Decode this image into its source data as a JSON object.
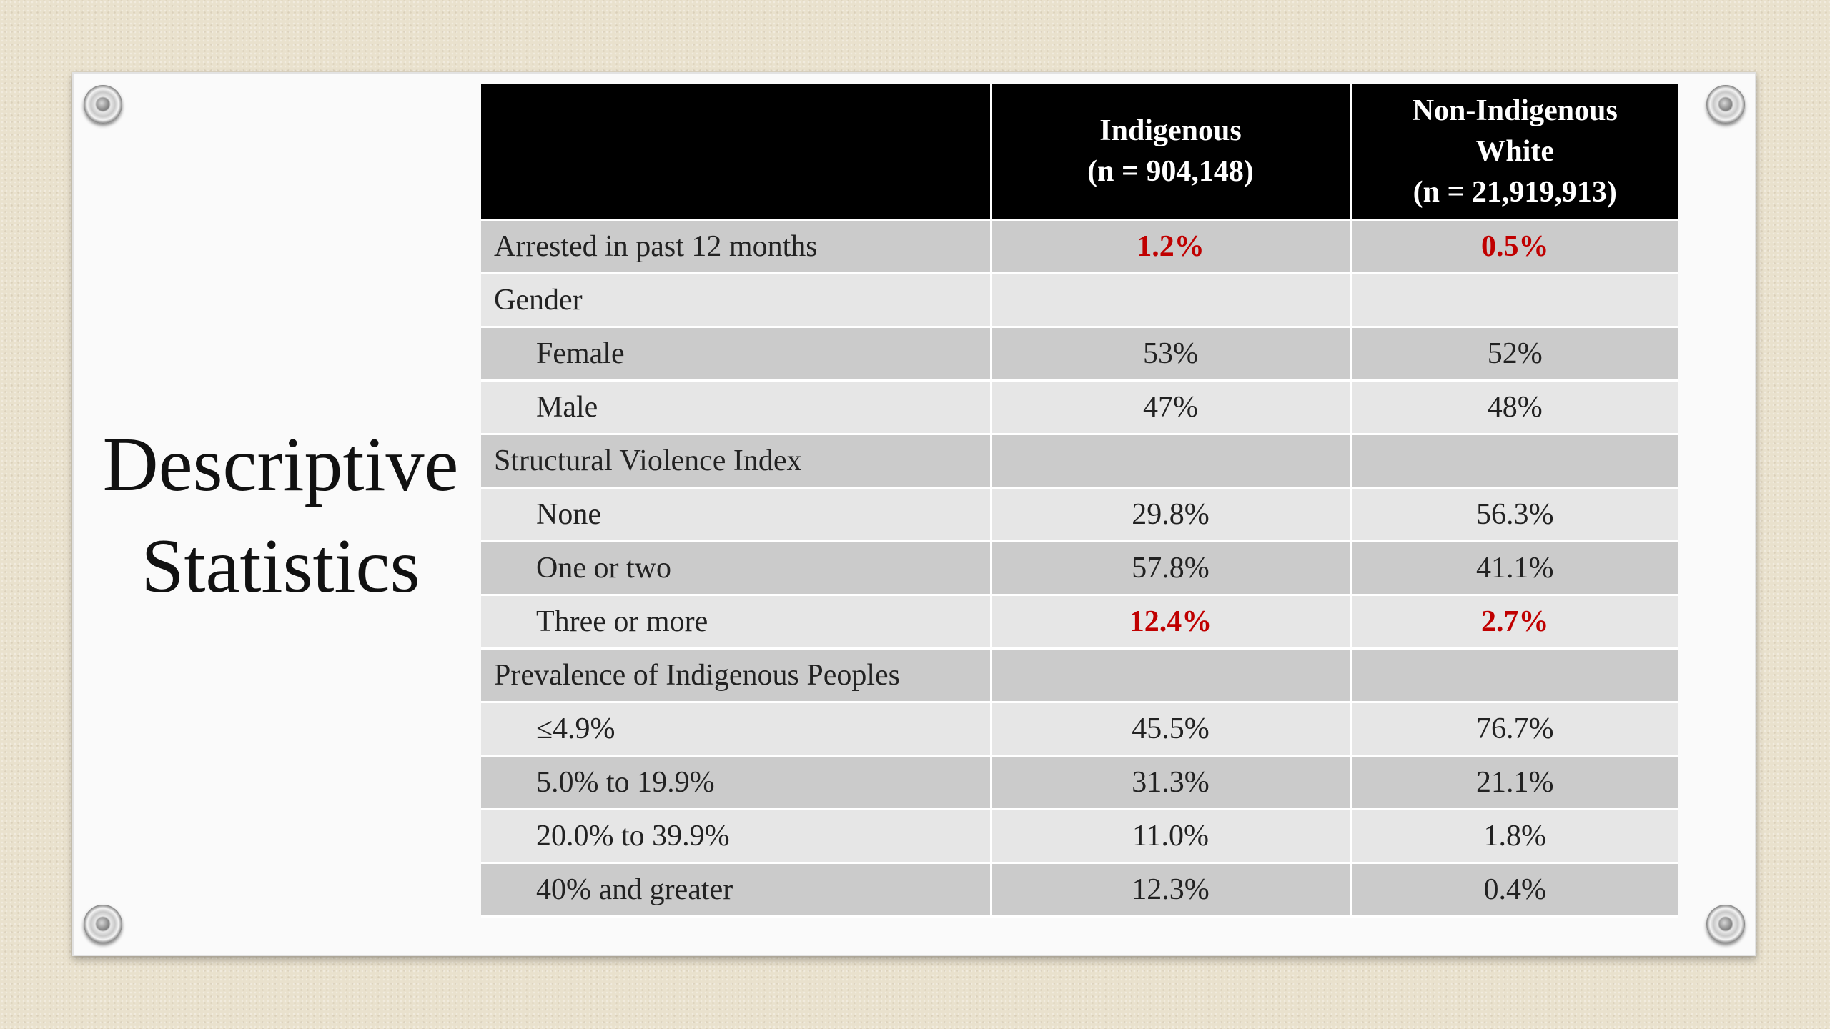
{
  "slide": {
    "title_line1": "Descriptive",
    "title_line2": "Statistics"
  },
  "table": {
    "header": {
      "col1_line1": "Indigenous",
      "col1_line2": "(n = 904,148)",
      "col2_line1": "Non-Indigenous",
      "col2_line2": "White",
      "col2_line3": "(n = 21,919,913)"
    },
    "rows": [
      {
        "label": "Arrested in past 12 months",
        "indigenous": "1.2%",
        "white": "0.5%",
        "highlight": true
      },
      {
        "label": "Gender",
        "indigenous": "",
        "white": ""
      },
      {
        "label": "Female",
        "indigenous": "53%",
        "white": "52%"
      },
      {
        "label": "Male",
        "indigenous": "47%",
        "white": "48%"
      },
      {
        "label": "Structural Violence Index",
        "indigenous": "",
        "white": ""
      },
      {
        "label": "None",
        "indigenous": "29.8%",
        "white": "56.3%"
      },
      {
        "label": "One or two",
        "indigenous": "57.8%",
        "white": "41.1%"
      },
      {
        "label": "Three or more",
        "indigenous": "12.4%",
        "white": "2.7%",
        "highlight": true
      },
      {
        "label": "Prevalence of Indigenous Peoples",
        "indigenous": "",
        "white": ""
      },
      {
        "label": "≤4.9%",
        "indigenous": "45.5%",
        "white": "76.7%"
      },
      {
        "label": "5.0% to 19.9%",
        "indigenous": "31.3%",
        "white": "21.1%"
      },
      {
        "label": "20.0% to 39.9%",
        "indigenous": "11.0%",
        "white": "1.8%"
      },
      {
        "label": "40% and greater",
        "indigenous": "12.3%",
        "white": "0.4%"
      }
    ]
  },
  "colors": {
    "highlight": "#c00000",
    "header_bg": "#000000",
    "row_dark": "#cbcbcb",
    "row_light": "#e6e6e6"
  }
}
